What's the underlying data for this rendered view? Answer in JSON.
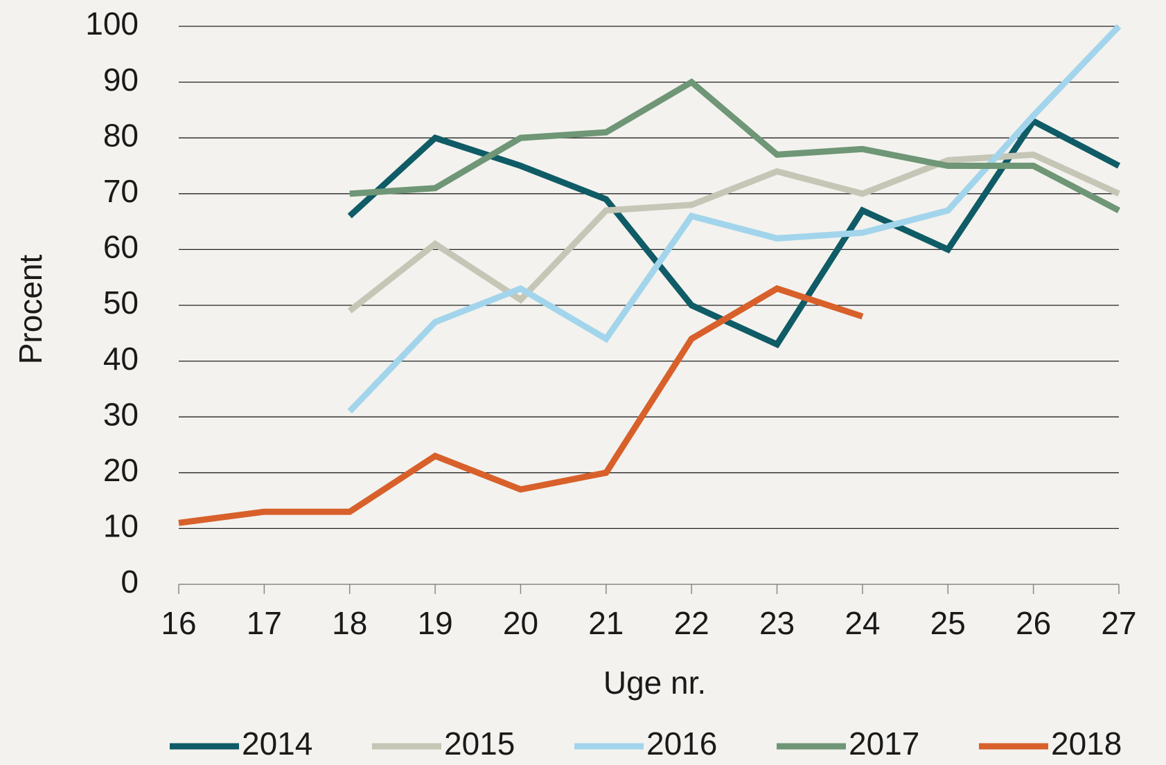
{
  "chart_data": {
    "type": "line",
    "xlabel": "Uge nr.",
    "ylabel": "Procent",
    "x": [
      16,
      17,
      18,
      19,
      20,
      21,
      22,
      23,
      24,
      25,
      26,
      27
    ],
    "xlim": [
      16,
      27
    ],
    "xticks": [
      16,
      17,
      18,
      19,
      20,
      21,
      22,
      23,
      24,
      25,
      26,
      27
    ],
    "ylim": [
      0,
      100
    ],
    "yticks": [
      0,
      10,
      20,
      30,
      40,
      50,
      60,
      70,
      80,
      90,
      100
    ],
    "grid": true,
    "legend": "bottom",
    "series": [
      {
        "name": "2014",
        "color": "#0f5b66",
        "values": [
          null,
          null,
          66,
          80,
          75,
          69,
          50,
          43,
          67,
          60,
          83,
          75
        ]
      },
      {
        "name": "2015",
        "color": "#c6c6b6",
        "values": [
          null,
          null,
          49,
          61,
          51,
          67,
          68,
          74,
          70,
          76,
          77,
          70
        ]
      },
      {
        "name": "2016",
        "color": "#a2d5ec",
        "values": [
          null,
          null,
          31,
          47,
          53,
          44,
          66,
          62,
          63,
          67,
          84,
          100
        ]
      },
      {
        "name": "2017",
        "color": "#6f9676",
        "values": [
          null,
          null,
          70,
          71,
          80,
          81,
          90,
          77,
          78,
          75,
          75,
          67
        ]
      },
      {
        "name": "2018",
        "color": "#d8602a",
        "values": [
          11,
          13,
          13,
          23,
          17,
          20,
          44,
          53,
          48,
          null,
          null,
          null
        ]
      }
    ]
  }
}
